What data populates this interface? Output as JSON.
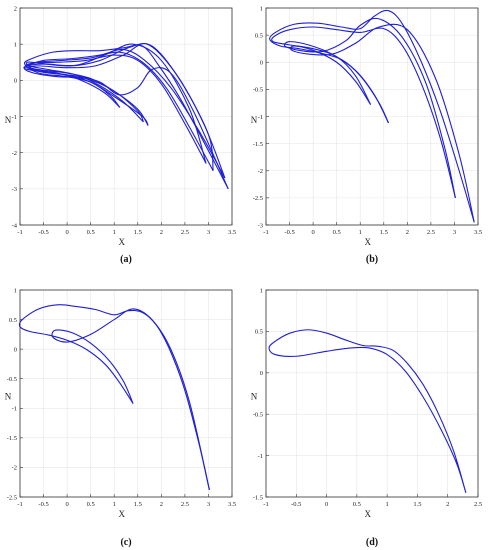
{
  "figure": {
    "panel_labels": [
      "(a)",
      "(b)",
      "(c)",
      "(d)"
    ]
  },
  "style": {
    "curve_color": "#1f1fd6",
    "axis_color": "#333333",
    "grid_color": "#e6e6e6",
    "background": "#ffffff"
  },
  "chart_data": [
    {
      "type": "line",
      "panel": "(a)",
      "xlabel": "X",
      "ylabel": "N",
      "xlim": [
        -1,
        3.5
      ],
      "ylim": [
        -4,
        2
      ],
      "xticks": [
        -1,
        -0.5,
        0,
        0.5,
        1,
        1.5,
        2,
        2.5,
        3,
        3.5
      ],
      "xtick_labels": [
        "-1",
        "-0.5",
        "0",
        "0.5",
        "1",
        "1.5",
        "2",
        "2.5",
        "3",
        "3.5"
      ],
      "yticks": [
        -4,
        -3,
        -2,
        -1,
        0,
        1,
        2
      ],
      "ytick_labels": [
        "-4",
        "-3",
        "-2",
        "-1",
        "0",
        "1",
        "2"
      ],
      "grid": true,
      "series": [
        {
          "x": [
            3.42,
            2.9,
            2.4,
            1.95,
            1.6,
            1.2,
            0.7,
            0.2,
            -0.3,
            -0.75,
            -0.9,
            -0.6,
            0.0,
            0.5,
            1.0,
            1.6,
            1.72
          ],
          "y": [
            -3.0,
            -1.7,
            -0.5,
            0.4,
            0.95,
            0.9,
            0.82,
            0.82,
            0.78,
            0.6,
            0.45,
            0.2,
            0.1,
            -0.05,
            -0.45,
            -1.0,
            -1.25
          ]
        },
        {
          "x": [
            1.72,
            1.5,
            1.0,
            0.5,
            0.0,
            -0.5,
            -0.82,
            -0.6,
            0.0,
            0.6,
            1.2,
            1.7,
            2.3,
            2.9,
            3.35
          ],
          "y": [
            -1.25,
            -0.8,
            -0.3,
            0.05,
            0.2,
            0.28,
            0.35,
            0.4,
            0.35,
            0.4,
            0.7,
            1.0,
            0.2,
            -1.2,
            -2.7
          ]
        },
        {
          "x": [
            3.35,
            2.8,
            2.2,
            1.65,
            1.2,
            0.7,
            0.1,
            -0.5,
            -0.9,
            -0.7,
            -0.2,
            0.4,
            1.0,
            1.5,
            1.62
          ],
          "y": [
            -2.7,
            -1.4,
            -0.2,
            0.55,
            0.85,
            0.7,
            0.6,
            0.55,
            0.35,
            0.2,
            0.1,
            0.05,
            -0.3,
            -0.85,
            -1.15
          ]
        },
        {
          "x": [
            1.62,
            1.2,
            0.7,
            0.2,
            -0.4,
            -0.8,
            -0.5,
            0.1,
            0.7,
            1.3,
            1.8,
            2.4,
            3.0,
            3.1
          ],
          "y": [
            -1.15,
            -0.6,
            -0.15,
            0.15,
            0.3,
            0.4,
            0.45,
            0.4,
            0.55,
            0.9,
            0.95,
            0.0,
            -1.5,
            -2.5
          ]
        },
        {
          "x": [
            3.1,
            2.6,
            2.1,
            1.6,
            1.1,
            0.5,
            -0.1,
            -0.6,
            -0.92,
            -0.6,
            0.0,
            0.5,
            0.9,
            1.12
          ],
          "y": [
            -2.5,
            -1.3,
            -0.2,
            0.5,
            0.78,
            0.62,
            0.55,
            0.5,
            0.35,
            0.25,
            0.15,
            -0.05,
            -0.4,
            -0.75
          ]
        },
        {
          "x": [
            1.12,
            0.8,
            0.3,
            -0.2,
            -0.7,
            -0.85,
            -0.4,
            0.2,
            0.8,
            1.4,
            2.0,
            2.6,
            2.95
          ],
          "y": [
            -0.75,
            -0.35,
            0.0,
            0.2,
            0.3,
            0.5,
            0.45,
            0.42,
            0.7,
            1.0,
            0.55,
            -0.8,
            -2.3
          ]
        },
        {
          "x": [
            2.95,
            2.5,
            2.0,
            1.5,
            1.0,
            0.4,
            -0.2,
            -0.7,
            -0.88,
            -0.5,
            0.2,
            0.7,
            1.1,
            1.5,
            1.8,
            2.2,
            2.7,
            3.42
          ],
          "y": [
            -2.3,
            -1.2,
            -0.1,
            0.55,
            0.7,
            0.55,
            0.5,
            0.48,
            0.38,
            0.22,
            0.12,
            -0.05,
            -0.4,
            -0.2,
            0.3,
            0.2,
            -0.9,
            -3.0
          ]
        }
      ]
    },
    {
      "type": "line",
      "panel": "(b)",
      "xlabel": "X",
      "ylabel": "N",
      "xlim": [
        -1,
        3.5
      ],
      "ylim": [
        -3,
        1
      ],
      "xticks": [
        -1,
        -0.5,
        0,
        0.5,
        1,
        1.5,
        2,
        2.5,
        3,
        3.5
      ],
      "xtick_labels": [
        "-1",
        "-0.5",
        "0",
        "0.5",
        "1",
        "1.5",
        "2",
        "2.5",
        "3",
        "3.5"
      ],
      "yticks": [
        -3,
        -2.5,
        -2,
        -1.5,
        -1,
        -0.5,
        0,
        0.5,
        1
      ],
      "ytick_labels": [
        "-3",
        "-2.5",
        "-2",
        "-1.5",
        "-1",
        "-0.5",
        "0",
        "0.5",
        "1"
      ],
      "grid": true,
      "series": [
        {
          "x": [
            3.42,
            3.1,
            2.7,
            2.3,
            1.9,
            1.6,
            1.3,
            1.0,
            0.6,
            0.1,
            -0.4,
            -0.8,
            -0.92,
            -0.7,
            -0.3,
            0.1,
            0.6,
            1.0,
            1.4,
            1.6
          ],
          "y": [
            -2.95,
            -2.0,
            -0.9,
            0.0,
            0.7,
            0.95,
            0.85,
            0.62,
            0.65,
            0.72,
            0.7,
            0.55,
            0.42,
            0.3,
            0.25,
            0.18,
            0.05,
            -0.25,
            -0.75,
            -1.12
          ]
        },
        {
          "x": [
            1.6,
            1.3,
            0.9,
            0.4,
            -0.1,
            -0.5,
            -0.6,
            -0.3,
            0.2,
            0.7,
            1.0,
            1.4,
            1.9,
            2.4,
            2.8,
            3.02
          ],
          "y": [
            -1.12,
            -0.6,
            -0.15,
            0.15,
            0.32,
            0.38,
            0.3,
            0.22,
            0.2,
            0.4,
            0.68,
            0.8,
            0.45,
            -0.4,
            -1.6,
            -2.5
          ]
        },
        {
          "x": [
            3.02,
            2.7,
            2.3,
            1.9,
            1.5,
            1.0,
            0.5,
            0.0,
            -0.5,
            -0.82,
            -0.85,
            -0.5,
            0.0,
            0.5,
            0.9,
            1.22
          ],
          "y": [
            -2.5,
            -1.4,
            -0.4,
            0.3,
            0.62,
            0.55,
            0.6,
            0.65,
            0.6,
            0.48,
            0.38,
            0.32,
            0.25,
            0.1,
            -0.25,
            -0.78
          ]
        },
        {
          "x": [
            1.22,
            0.9,
            0.5,
            0.0,
            -0.4,
            -0.45,
            -0.1,
            0.4,
            0.9,
            1.4,
            2.0,
            2.6,
            3.1,
            3.42
          ],
          "y": [
            -0.78,
            -0.35,
            0.0,
            0.22,
            0.3,
            0.22,
            0.15,
            0.15,
            0.35,
            0.65,
            0.6,
            -0.3,
            -1.7,
            -2.95
          ]
        }
      ]
    },
    {
      "type": "line",
      "panel": "(c)",
      "xlabel": "X",
      "ylabel": "N",
      "xlim": [
        -1,
        3.5
      ],
      "ylim": [
        -2.5,
        1
      ],
      "xticks": [
        -1,
        -0.5,
        0,
        0.5,
        1,
        1.5,
        2,
        2.5,
        3,
        3.5
      ],
      "xtick_labels": [
        "-1",
        "-0.5",
        "0",
        "0.5",
        "1",
        "1.5",
        "2",
        "2.5",
        "3",
        "3.5"
      ],
      "yticks": [
        -2.5,
        -2,
        -1.5,
        -1,
        -0.5,
        0,
        0.5,
        1
      ],
      "ytick_labels": [
        "-2.5",
        "-2",
        "-1.5",
        "-1",
        "-0.5",
        "0",
        "0.5",
        "1"
      ],
      "grid": true,
      "series": [
        {
          "x": [
            3.02,
            2.8,
            2.5,
            2.2,
            1.9,
            1.6,
            1.3,
            1.0,
            0.6,
            0.2,
            -0.2,
            -0.6,
            -0.95,
            -1.0,
            -0.8,
            -0.4,
            0.0,
            0.4,
            0.8,
            1.1,
            1.4
          ],
          "y": [
            -2.38,
            -1.6,
            -0.7,
            -0.05,
            0.4,
            0.62,
            0.65,
            0.58,
            0.67,
            0.72,
            0.75,
            0.68,
            0.5,
            0.38,
            0.3,
            0.24,
            0.15,
            0.0,
            -0.25,
            -0.55,
            -0.92
          ]
        },
        {
          "x": [
            1.4,
            1.2,
            0.9,
            0.5,
            0.1,
            -0.25,
            -0.3,
            0.0,
            0.5,
            1.0,
            1.4,
            1.8,
            2.2,
            2.6,
            3.02
          ],
          "y": [
            -0.92,
            -0.55,
            -0.2,
            0.1,
            0.28,
            0.32,
            0.2,
            0.12,
            0.25,
            0.5,
            0.68,
            0.5,
            0.0,
            -0.9,
            -2.38
          ]
        }
      ]
    },
    {
      "type": "line",
      "panel": "(d)",
      "xlabel": "X",
      "ylabel": "N",
      "xlim": [
        -1,
        2.5
      ],
      "ylim": [
        -1.5,
        1
      ],
      "xticks": [
        -1,
        -0.5,
        0,
        0.5,
        1,
        1.5,
        2,
        2.5
      ],
      "xtick_labels": [
        "-1",
        "-0.5",
        "0",
        "0.5",
        "1",
        "1.5",
        "2",
        "2.5"
      ],
      "yticks": [
        -1.5,
        -1,
        -0.5,
        0,
        0.5,
        1
      ],
      "ytick_labels": [
        "-1.5",
        "-1",
        "-0.5",
        "0",
        "0.5",
        "1"
      ],
      "grid": true,
      "series": [
        {
          "x": [
            2.3,
            2.1,
            1.85,
            1.6,
            1.35,
            1.1,
            0.85,
            0.6,
            0.3,
            0.0,
            -0.3,
            -0.6,
            -0.85,
            -0.95,
            -0.85,
            -0.5,
            0.0,
            0.4,
            0.7,
            1.0,
            1.3,
            1.6,
            1.9,
            2.15,
            2.3
          ],
          "y": [
            -1.45,
            -0.95,
            -0.5,
            -0.15,
            0.1,
            0.27,
            0.32,
            0.33,
            0.4,
            0.48,
            0.52,
            0.48,
            0.38,
            0.3,
            0.22,
            0.2,
            0.26,
            0.3,
            0.3,
            0.22,
            0.02,
            -0.3,
            -0.7,
            -1.1,
            -1.45
          ]
        }
      ]
    }
  ]
}
